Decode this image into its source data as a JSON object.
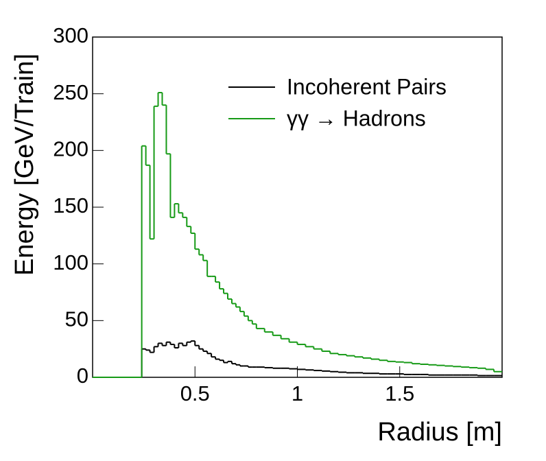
{
  "chart_data": {
    "type": "histogram",
    "x_label": "Radius [m]",
    "y_label": "Energy [GeV/Train]",
    "bins": [
      0,
      0.24,
      0.26,
      0.28,
      0.3,
      0.32,
      0.34,
      0.36,
      0.38,
      0.4,
      0.42,
      0.44,
      0.46,
      0.48,
      0.5,
      0.52,
      0.54,
      0.56,
      0.58,
      0.6,
      0.62,
      0.64,
      0.66,
      0.68,
      0.7,
      0.72,
      0.74,
      0.76,
      0.78,
      0.8,
      0.84,
      0.88,
      0.92,
      0.96,
      1.0,
      1.04,
      1.08,
      1.12,
      1.16,
      1.2,
      1.24,
      1.28,
      1.32,
      1.36,
      1.4,
      1.44,
      1.48,
      1.52,
      1.56,
      1.6,
      1.64,
      1.68,
      1.72,
      1.76,
      1.8,
      1.84,
      1.88,
      1.92,
      1.96,
      2.0
    ],
    "series": [
      {
        "name": "Incoherent Pairs",
        "color": "#000000",
        "values": [
          0,
          25,
          24,
          22,
          27,
          30,
          28,
          31,
          29,
          26,
          30,
          28,
          31,
          32,
          28,
          25,
          23,
          21,
          18,
          16,
          15,
          13,
          14,
          12,
          11,
          10,
          10,
          9,
          9,
          9,
          8.5,
          8,
          8,
          7.5,
          7,
          6.5,
          6,
          5.5,
          5,
          4.5,
          4,
          4,
          3.5,
          3.5,
          3,
          3,
          3,
          2.5,
          2.5,
          2.5,
          2,
          2,
          2,
          2,
          2,
          2,
          1.5,
          1.5,
          1.5
        ]
      },
      {
        "name": "γγ → Hadrons",
        "color": "#169a16",
        "values": [
          0,
          204,
          187,
          122,
          239,
          251,
          240,
          197,
          141,
          153,
          145,
          141,
          133,
          127,
          113,
          108,
          103,
          89,
          89,
          84,
          78,
          74,
          69,
          65,
          62,
          58,
          54,
          50,
          47,
          43,
          40,
          37,
          34,
          31,
          29,
          27,
          25,
          23,
          21,
          20,
          19,
          18,
          17,
          16,
          15,
          14,
          13.5,
          13,
          12,
          11.5,
          11,
          10.5,
          10,
          9.5,
          9,
          8.5,
          8,
          7,
          5
        ]
      }
    ],
    "xlim": [
      0,
      2
    ],
    "ylim": [
      0,
      300
    ],
    "xticks": [
      0.5,
      1,
      1.5
    ],
    "yticks": [
      0,
      50,
      100,
      150,
      200,
      250,
      300
    ],
    "legend": "top-right"
  }
}
